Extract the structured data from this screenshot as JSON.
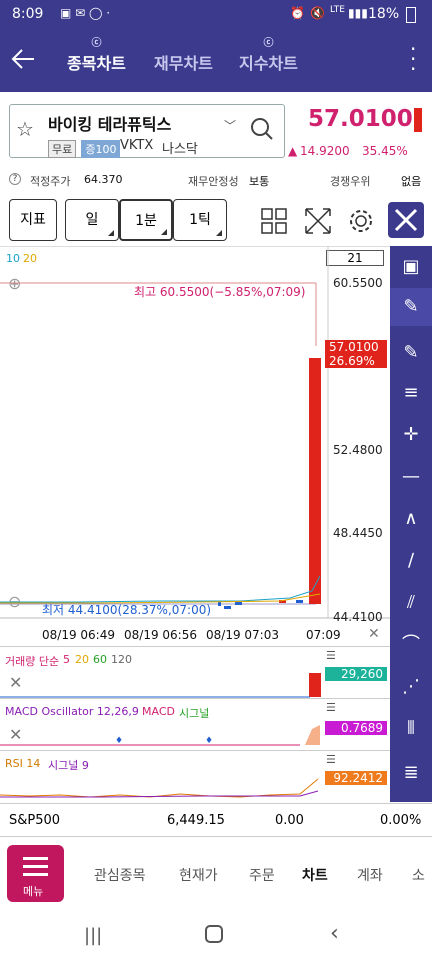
{
  "status": {
    "time": "8:09",
    "battery": "18%",
    "network": "LTE"
  },
  "header": {
    "back_icon": "back-arrow-icon",
    "tabs": [
      {
        "label": "종목차트",
        "active": true
      },
      {
        "label": "재무차트",
        "active": false
      },
      {
        "label": "지수차트",
        "active": false
      }
    ],
    "menu_icon": "more-vert-icon"
  },
  "stock": {
    "name": "바이킹 테라퓨틱스",
    "tag1": "무료",
    "tag2": "증100",
    "ticker": "VKTX",
    "market": "나스닥",
    "price": "57.0100",
    "change": "14.9200",
    "change_pct": "35.45%",
    "fair_label": "적정주가",
    "fair_value": "64.370",
    "fin_label": "재무안정성",
    "fin_value": "보통",
    "comp_label": "경쟁우위",
    "comp_value": "없음"
  },
  "toolbar": {
    "indicator": "지표",
    "day": "일",
    "minute": "1분",
    "tick": "1틱",
    "count": "21"
  },
  "chart": {
    "ma_legend_10": "10",
    "ma_legend_20": "20",
    "high_label": "최고 60.5500(−5.85%,07:09)",
    "low_label": "최저 44.4100(28.37%,07:00)",
    "price_tag": "57.0100",
    "price_tag_pct": "26.69%",
    "y_ticks": [
      "60.5500",
      "52.4800",
      "48.4450",
      "44.4100"
    ],
    "x_ticks": [
      "08/19 06:49",
      "08/19 06:56",
      "08/19 07:03",
      "07:09"
    ],
    "volume_label": "거래량 단순",
    "volume_ma": [
      "5",
      "20",
      "60",
      "120"
    ],
    "volume_value": "29,260",
    "macd_label": "MACD Oscillator 12,26,9",
    "macd_line_label": "MACD",
    "macd_signal_label": "시그널",
    "macd_value": "0.7689",
    "rsi_label": "RSI 14",
    "rsi_signal_label": "시그널 9",
    "rsi_value": "92.2412"
  },
  "chart_data": {
    "type": "candlestick",
    "x": [
      "06:49",
      "06:56",
      "07:03",
      "07:09"
    ],
    "y_ticks": [
      60.55,
      52.48,
      48.445,
      44.41
    ],
    "high": 60.55,
    "low": 44.41,
    "last": 57.01,
    "volume_last": 29260,
    "macd_last": 0.7689,
    "rsi_last": 92.2412
  },
  "index_bar": {
    "name": "S&P500",
    "value": "6,449.15",
    "change": "0.00",
    "pct": "0.00%"
  },
  "bottom_nav": {
    "menu": "메뉴",
    "items": [
      "관심종목",
      "현재가",
      "주문",
      "차트",
      "계좌",
      "소"
    ]
  },
  "colors": {
    "header": "#3b3a8c",
    "up": "#e0241b",
    "down": "#1f5fd1",
    "accent": "#d0216e"
  }
}
